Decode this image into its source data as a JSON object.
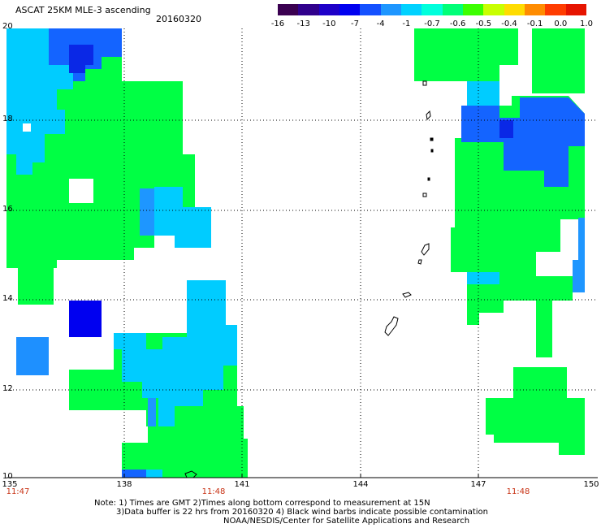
{
  "header": {
    "title": "ASCAT 25KM MLE-3 ascending",
    "date": "20160320"
  },
  "colorbar": {
    "tick_labels": [
      "-16",
      "-13",
      "-10",
      "-7",
      "-4",
      "-1",
      "-0.7",
      "-0.6",
      "-0.5",
      "-0.4",
      "-0.1",
      "0.0",
      "1.0"
    ],
    "colors": [
      "#3a0050",
      "#30008c",
      "#1e00c8",
      "#0000f0",
      "#1450ff",
      "#1e96ff",
      "#00d2ff",
      "#00ffdc",
      "#00ff78",
      "#3cff00",
      "#c8ff00",
      "#ffdc00",
      "#ff8c00",
      "#ff3c00",
      "#e61400"
    ]
  },
  "axes": {
    "y_labels": [
      "20",
      "18",
      "16",
      "14",
      "12",
      "10"
    ],
    "x_labels": [
      "135",
      "138",
      "141",
      "144",
      "147",
      "150"
    ],
    "times": [
      "11:47",
      "11:48",
      "11:48"
    ]
  },
  "notes": {
    "line1": "Note: 1) Times are GMT 2)Times along bottom correspond to measurement at 15N",
    "line2": "3)Data buffer is 22 hrs from 20160320 4) Black wind barbs indicate possible contamination",
    "line3": "NOAA/NESDIS/Center for Satellite Applications and Research"
  },
  "map_colors": {
    "green": "#00ff44",
    "cyan": "#00ccff",
    "sky": "#1e96ff",
    "blue": "#1464ff",
    "deep_blue": "#0000f0"
  }
}
